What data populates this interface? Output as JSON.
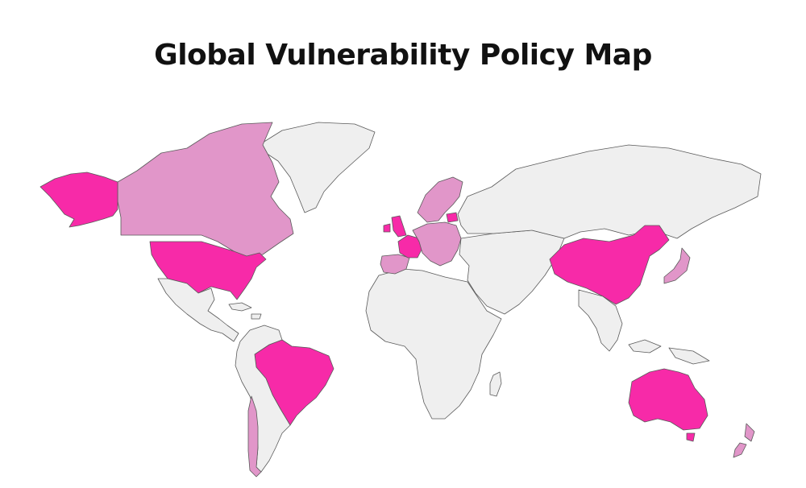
{
  "title": "Global Vulnerability Policy Map",
  "colors": {
    "background": "#ffffff",
    "no_policy": "#efefef",
    "regional_policy": "#e196c9",
    "national_policy": "#f72aa8",
    "border": "#5a5a5a"
  },
  "regions": [
    {
      "name": "Alaska",
      "category": "national_policy"
    },
    {
      "name": "United States",
      "category": "national_policy"
    },
    {
      "name": "Canada",
      "category": "regional_policy"
    },
    {
      "name": "Greenland",
      "category": "no_policy"
    },
    {
      "name": "Mexico & Central America",
      "category": "no_policy"
    },
    {
      "name": "Brazil",
      "category": "national_policy"
    },
    {
      "name": "Chile",
      "category": "regional_policy"
    },
    {
      "name": "Rest of South America",
      "category": "no_policy"
    },
    {
      "name": "United Kingdom",
      "category": "national_policy"
    },
    {
      "name": "France",
      "category": "national_policy"
    },
    {
      "name": "Iberia",
      "category": "regional_policy"
    },
    {
      "name": "Scandinavia",
      "category": "regional_policy"
    },
    {
      "name": "Central Europe",
      "category": "regional_policy"
    },
    {
      "name": "Lithuania",
      "category": "national_policy"
    },
    {
      "name": "Africa",
      "category": "no_policy"
    },
    {
      "name": "Russia",
      "category": "no_policy"
    },
    {
      "name": "Middle East & Central Asia",
      "category": "no_policy"
    },
    {
      "name": "China",
      "category": "national_policy"
    },
    {
      "name": "Japan",
      "category": "regional_policy"
    },
    {
      "name": "Southeast Asia",
      "category": "no_policy"
    },
    {
      "name": "Australia",
      "category": "national_policy"
    },
    {
      "name": "New Zealand",
      "category": "regional_policy"
    }
  ]
}
